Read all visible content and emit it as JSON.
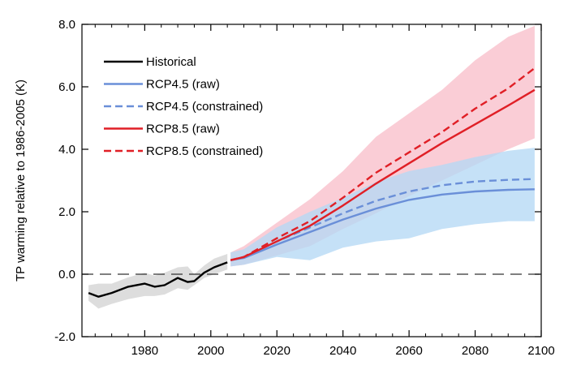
{
  "chart_data": {
    "type": "line",
    "title": "",
    "xlabel": "",
    "ylabel": "TP warming relative to 1986-2005 (K)",
    "xlim": [
      1961,
      2100
    ],
    "ylim": [
      -2.0,
      8.0
    ],
    "xticks": [
      1980,
      2000,
      2020,
      2040,
      2060,
      2080,
      2100
    ],
    "yticks": [
      -2.0,
      0.0,
      2.0,
      4.0,
      6.0,
      8.0
    ],
    "ytick_labels": [
      "-2.0",
      "0.0",
      "2.0",
      "4.0",
      "6.0",
      "8.0"
    ],
    "reference_line_y": 0.0,
    "grid": false,
    "legend_position": "top-left",
    "series": [
      {
        "name": "Historical",
        "color": "#000000",
        "dash": "solid",
        "x": [
          1963,
          1966,
          1970,
          1975,
          1980,
          1983,
          1986,
          1990,
          1993,
          1995,
          1998,
          2001,
          2005
        ],
        "y": [
          -0.6,
          -0.72,
          -0.6,
          -0.4,
          -0.3,
          -0.4,
          -0.35,
          -0.12,
          -0.25,
          -0.22,
          0.05,
          0.22,
          0.38
        ],
        "band_color": "#d9d9d9",
        "band_lower": [
          -0.85,
          -1.1,
          -0.95,
          -0.8,
          -0.7,
          -0.7,
          -0.65,
          -0.45,
          -0.5,
          -0.35,
          -0.12,
          0.0,
          0.15
        ],
        "band_upper": [
          -0.35,
          -0.3,
          -0.3,
          -0.1,
          0.05,
          -0.05,
          0.05,
          0.22,
          0.25,
          0.0,
          0.28,
          0.5,
          0.65
        ]
      },
      {
        "name": "RCP4.5 (raw)",
        "color": "#6a8fd8",
        "dash": "solid",
        "x": [
          2006,
          2010,
          2020,
          2030,
          2040,
          2050,
          2060,
          2070,
          2080,
          2090,
          2098
        ],
        "y": [
          0.45,
          0.52,
          0.95,
          1.35,
          1.75,
          2.1,
          2.38,
          2.55,
          2.65,
          2.7,
          2.72
        ],
        "band_color": "#b5d8f5",
        "band_lower": [
          0.25,
          0.3,
          0.55,
          0.45,
          0.85,
          1.05,
          1.15,
          1.45,
          1.6,
          1.7,
          1.7
        ],
        "band_upper": [
          0.7,
          0.8,
          1.5,
          2.0,
          2.45,
          2.95,
          3.3,
          3.5,
          3.75,
          3.95,
          4.05
        ]
      },
      {
        "name": "RCP4.5 (constrained)",
        "color": "#6a8fd8",
        "dash": "dashed",
        "x": [
          2006,
          2010,
          2020,
          2030,
          2040,
          2050,
          2060,
          2070,
          2080,
          2090,
          2098
        ],
        "y": [
          0.45,
          0.55,
          1.05,
          1.5,
          1.95,
          2.35,
          2.65,
          2.85,
          2.97,
          3.02,
          3.05
        ]
      },
      {
        "name": "RCP8.5 (raw)",
        "color": "#e01f26",
        "dash": "solid",
        "x": [
          2006,
          2010,
          2020,
          2030,
          2040,
          2050,
          2060,
          2070,
          2080,
          2090,
          2098
        ],
        "y": [
          0.45,
          0.55,
          1.05,
          1.55,
          2.2,
          2.9,
          3.55,
          4.2,
          4.8,
          5.4,
          5.9
        ],
        "band_color": "#f9c8d2",
        "band_lower": [
          0.25,
          0.3,
          0.6,
          0.9,
          1.45,
          1.95,
          2.5,
          3.0,
          3.5,
          4.0,
          4.35
        ],
        "band_upper": [
          0.7,
          0.9,
          1.65,
          2.4,
          3.3,
          4.4,
          5.15,
          5.9,
          6.85,
          7.6,
          7.95
        ]
      },
      {
        "name": "RCP8.5 (constrained)",
        "color": "#e01f26",
        "dash": "dashed",
        "x": [
          2006,
          2010,
          2020,
          2030,
          2040,
          2050,
          2060,
          2070,
          2080,
          2090,
          2098
        ],
        "y": [
          0.45,
          0.55,
          1.15,
          1.7,
          2.45,
          3.25,
          3.9,
          4.55,
          5.3,
          5.95,
          6.6
        ]
      }
    ]
  }
}
